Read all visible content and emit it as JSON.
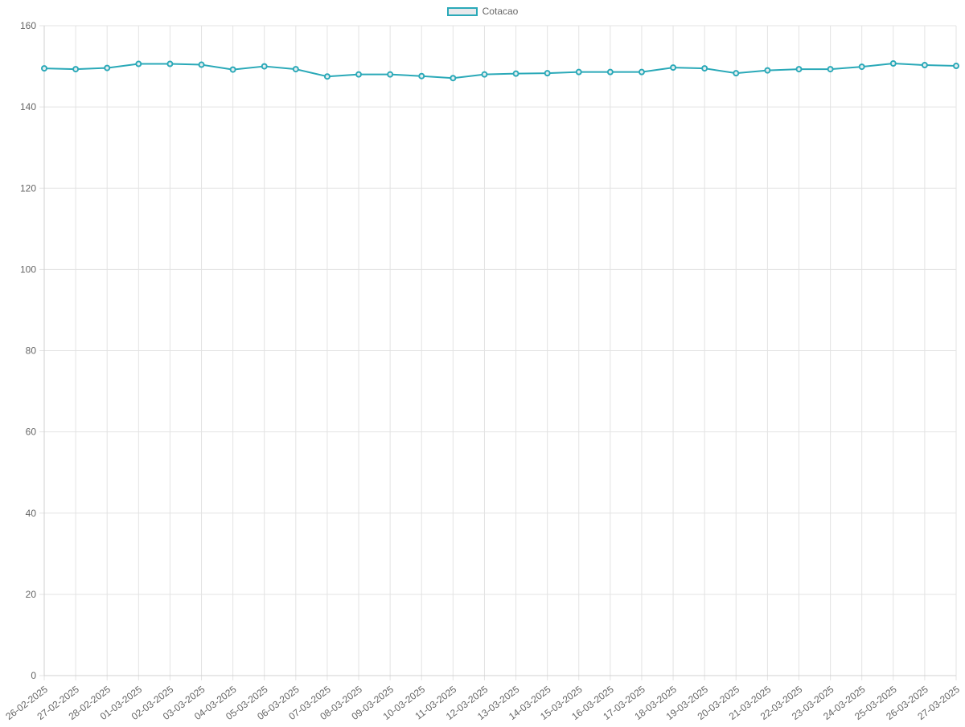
{
  "chart_data": {
    "type": "line",
    "title": "",
    "xlabel": "",
    "ylabel": "",
    "categories": [
      "26-02-2025",
      "27-02-2025",
      "28-02-2025",
      "01-03-2025",
      "02-03-2025",
      "03-03-2025",
      "04-03-2025",
      "05-03-2025",
      "06-03-2025",
      "07-03-2025",
      "08-03-2025",
      "09-03-2025",
      "10-03-2025",
      "11-03-2025",
      "12-03-2025",
      "13-03-2025",
      "14-03-2025",
      "15-03-2025",
      "16-03-2025",
      "17-03-2025",
      "18-03-2025",
      "19-03-2025",
      "20-03-2025",
      "21-03-2025",
      "22-03-2025",
      "23-03-2025",
      "24-03-2025",
      "25-03-2025",
      "26-03-2025",
      "27-03-2025"
    ],
    "series": [
      {
        "name": "Cotacao",
        "color": "#2aa9b8",
        "values": [
          149.5,
          149.3,
          149.6,
          150.6,
          150.6,
          150.4,
          149.2,
          150.0,
          149.3,
          147.5,
          148.0,
          148.0,
          147.6,
          147.1,
          148.0,
          148.2,
          148.3,
          148.6,
          148.6,
          148.6,
          149.7,
          149.5,
          148.3,
          149.0,
          149.3,
          149.3,
          149.9,
          150.7,
          150.3,
          150.1
        ]
      }
    ],
    "ylim": [
      0,
      160
    ],
    "yticks": [
      0,
      20,
      40,
      60,
      80,
      100,
      120,
      140,
      160
    ],
    "grid": true,
    "legend_position": "top-center",
    "tick_label_rotation": "angled"
  }
}
